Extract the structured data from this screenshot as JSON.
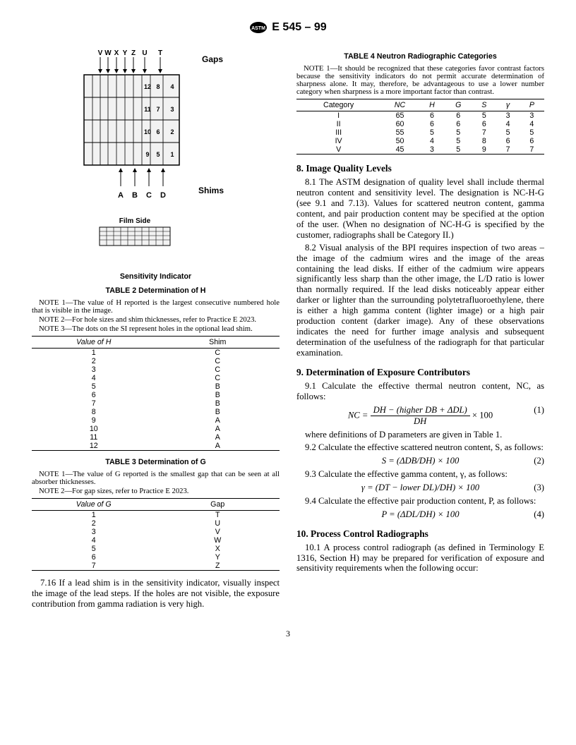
{
  "header": {
    "designation": "E 545 – 99"
  },
  "figure": {
    "gap_labels": [
      "V",
      "W",
      "X",
      "Y",
      "Z",
      "U",
      "T"
    ],
    "gap_title": "Gaps",
    "shim_labels": [
      "A",
      "B",
      "C",
      "D"
    ],
    "shim_title": "Shims",
    "grid_numbers": [
      [
        "12",
        "8",
        "4"
      ],
      [
        "11",
        "7",
        "3"
      ],
      [
        "10",
        "6",
        "2"
      ],
      [
        "9",
        "5",
        "1"
      ]
    ],
    "film_side": "Film Side",
    "sensitivity_caption": "Sensitivity Indicator"
  },
  "table2": {
    "title": "TABLE 2  Determination of H",
    "notes": [
      "NOTE 1—The value of H reported is the largest consecutive numbered hole that is visible in the image.",
      "NOTE 2—For hole sizes and shim thicknesses, refer to Practice E 2023.",
      "NOTE 3—The dots on the SI represent holes in the optional lead shim."
    ],
    "columns": [
      "Value of H",
      "Shim"
    ],
    "rows": [
      [
        "1",
        "C"
      ],
      [
        "2",
        "C"
      ],
      [
        "3",
        "C"
      ],
      [
        "4",
        "C"
      ],
      [
        "5",
        "B"
      ],
      [
        "6",
        "B"
      ],
      [
        "7",
        "B"
      ],
      [
        "8",
        "B"
      ],
      [
        "9",
        "A"
      ],
      [
        "10",
        "A"
      ],
      [
        "11",
        "A"
      ],
      [
        "12",
        "A"
      ]
    ]
  },
  "table3": {
    "title": "TABLE 3  Determination of G",
    "notes": [
      "NOTE 1—The value of G reported is the smallest gap that can be seen at all absorber thicknesses.",
      "NOTE 2—For gap sizes, refer to Practice E 2023."
    ],
    "columns": [
      "Value of G",
      "Gap"
    ],
    "rows": [
      [
        "1",
        "T"
      ],
      [
        "2",
        "U"
      ],
      [
        "3",
        "V"
      ],
      [
        "4",
        "W"
      ],
      [
        "5",
        "X"
      ],
      [
        "6",
        "Y"
      ],
      [
        "7",
        "Z"
      ]
    ]
  },
  "para716": "7.16 If a lead shim is in the sensitivity indicator, visually inspect the image of the lead steps. If the holes are not visible, the exposure contribution from gamma radiation is very high.",
  "table4": {
    "title": "TABLE 4  Neutron Radiographic Categories",
    "note": "NOTE 1—It should be recognized that these categories favor contrast factors because the sensitivity indicators do not permit accurate determination of sharpness alone. It may, therefore, be advantageous to use a lower number category when sharpness is a more important factor than contrast.",
    "columns": [
      "Category",
      "NC",
      "H",
      "G",
      "S",
      "γ",
      "P"
    ],
    "rows": [
      [
        "I",
        "65",
        "6",
        "6",
        "5",
        "3",
        "3"
      ],
      [
        "II",
        "60",
        "6",
        "6",
        "6",
        "4",
        "4"
      ],
      [
        "III",
        "55",
        "5",
        "5",
        "7",
        "5",
        "5"
      ],
      [
        "IV",
        "50",
        "4",
        "5",
        "8",
        "6",
        "6"
      ],
      [
        "V",
        "45",
        "3",
        "5",
        "9",
        "7",
        "7"
      ]
    ]
  },
  "sec8": {
    "title": "8.  Image Quality Levels",
    "p1": "8.1 The ASTM designation of quality level shall include thermal neutron content and sensitivity level. The designation is NC-H-G (see 9.1 and 7.13). Values for scattered neutron content, gamma content, and pair production content may be specified at the option of the user. (When no designation of NC-H-G is specified by the customer, radiographs shall be Category II.)",
    "p2": "8.2 Visual analysis of the BPI requires inspection of two areas – the image of the cadmium wires and the image of the areas containing the lead disks. If either of the cadmium wire appears significantly less sharp than the other image, the L/D ratio is lower than normally required. If the lead disks noticeably appear either darker or lighter than the surrounding polytetrafluoroethylene, there is either a high gamma content (lighter image) or a high pair production content (darker image). Any of these observations indicates the need for further image analysis and subsequent determination of the usefulness of the radiograph for that particular examination."
  },
  "sec9": {
    "title": "9.  Determination of Exposure Contributors",
    "p1": "9.1 Calculate the effective thermal neutron content, NC, as follows:",
    "eq1_top": "DH − (higher DB + ΔDL)",
    "eq1_bot": "DH",
    "eq1_suffix": " × 100",
    "eq1_lhs": "NC = ",
    "eq1_num": "(1)",
    "pdef": "where definitions of D parameters are given in Table 1.",
    "p2": "9.2 Calculate the effective scattered neutron content, S, as follows:",
    "eq2": "S = (ΔDB/DH) × 100",
    "eq2_num": "(2)",
    "p3": "9.3 Calculate the effective gamma content, γ, as follows:",
    "eq3": "γ = (DT − lower DL)/DH) × 100",
    "eq3_num": "(3)",
    "p4": "9.4 Calculate the effective pair production content, P, as follows:",
    "eq4": "P = (ΔDL/DH) × 100",
    "eq4_num": "(4)"
  },
  "sec10": {
    "title": "10.  Process Control Radiographs",
    "p1": "10.1 A process control radiograph (as defined in Terminology E 1316, Section H) may be prepared for verification of exposure and sensitivity requirements when the following occur:"
  },
  "page": "3"
}
